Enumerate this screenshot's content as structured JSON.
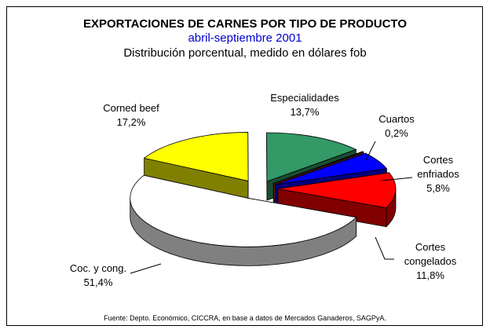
{
  "chart_data": {
    "type": "pie",
    "title": "EXPORTACIONES DE CARNES POR TIPO DE PRODUCTO",
    "subtitle": "abril-septiembre 2001",
    "subtitle2": "Distribución porcentual, medido en dólares fob",
    "source": "Fuente: Depto. Económico, CICCRA,  en base a datos de Mercados Ganaderos, SAGPyA.",
    "categories": [
      "Corned beef",
      "Especialidades",
      "Cuartos",
      "Cortes enfriados",
      "Cortes congelados",
      "Coc. y cong."
    ],
    "values": [
      17.2,
      13.7,
      0.2,
      5.8,
      11.8,
      51.4
    ],
    "value_labels": [
      "17,2%",
      "13,7%",
      "0,2%",
      "5,8%",
      "11,8%",
      "51,4%"
    ],
    "colors": [
      "#ffff00",
      "#339966",
      "#993300",
      "#0000ff",
      "#ff0000",
      "#ffffff"
    ]
  }
}
